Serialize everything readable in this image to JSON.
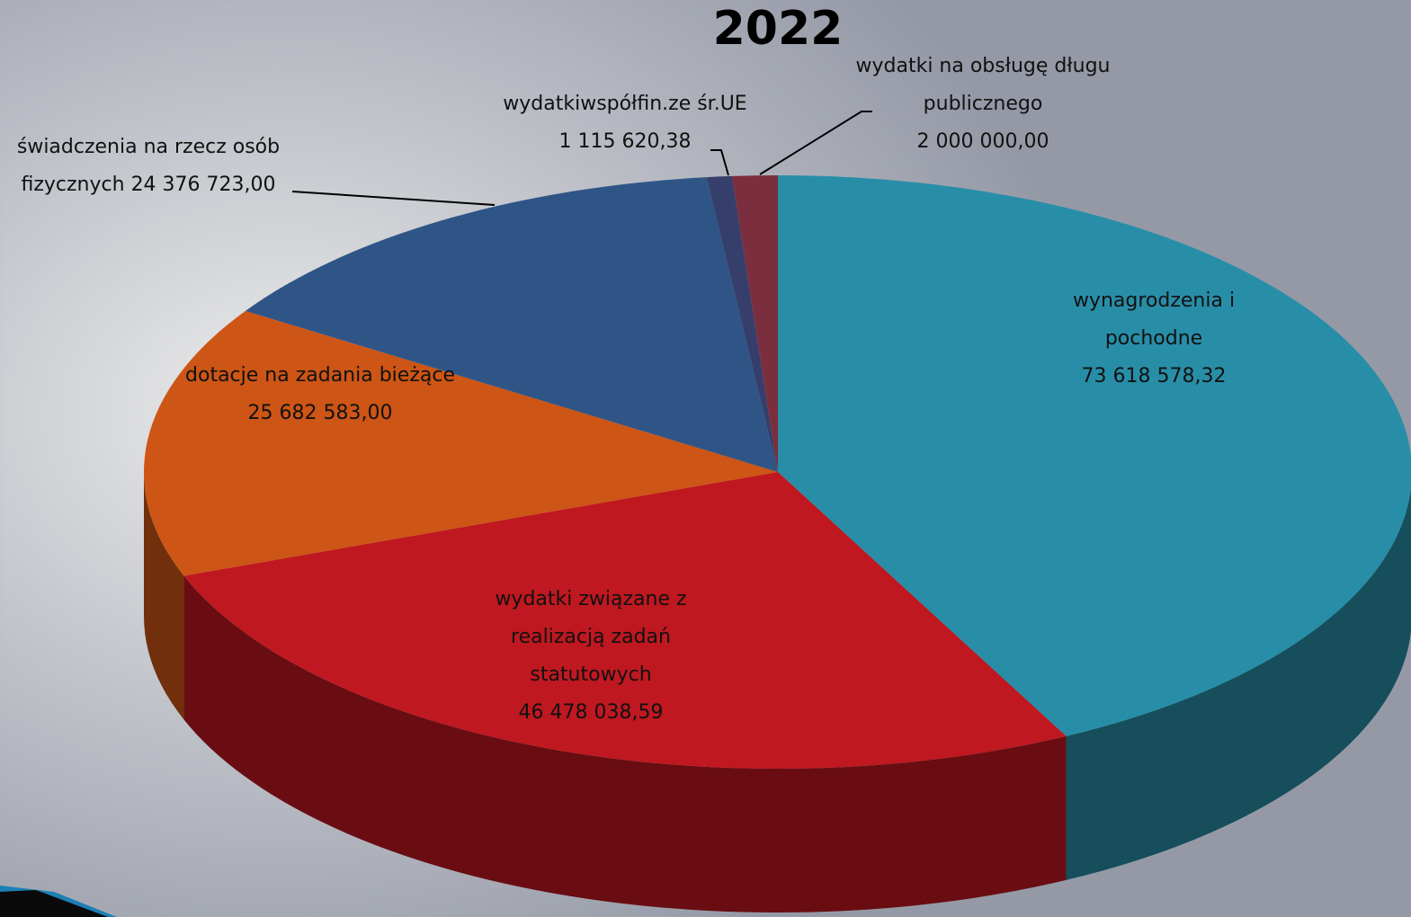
{
  "chart_data": {
    "type": "pie3d",
    "title": "2022",
    "categories": [
      "wynagrodzenia i pochodne",
      "wydatki związane z realizacją zadań statutowych",
      "dotacje na zadania bieżące",
      "świadczenia na rzecz osób fizycznych",
      "wydatkiwspółfin.ze śr.UE",
      "wydatki na obsługę długu publicznego"
    ],
    "values": [
      73618578.32,
      46478038.59,
      25682583.0,
      24376723.0,
      1115620.38,
      2000000.0
    ],
    "value_labels": [
      "73 618 578,32",
      "46 478 038,59",
      "25 682 583,00",
      "24 376 723,00",
      "1 115 620,38",
      "2 000 000,00"
    ],
    "colors": [
      "#288ea8",
      "#bf1820",
      "#cd5515",
      "#2f5587",
      "#363f6c",
      "#7b2f3e"
    ]
  }
}
